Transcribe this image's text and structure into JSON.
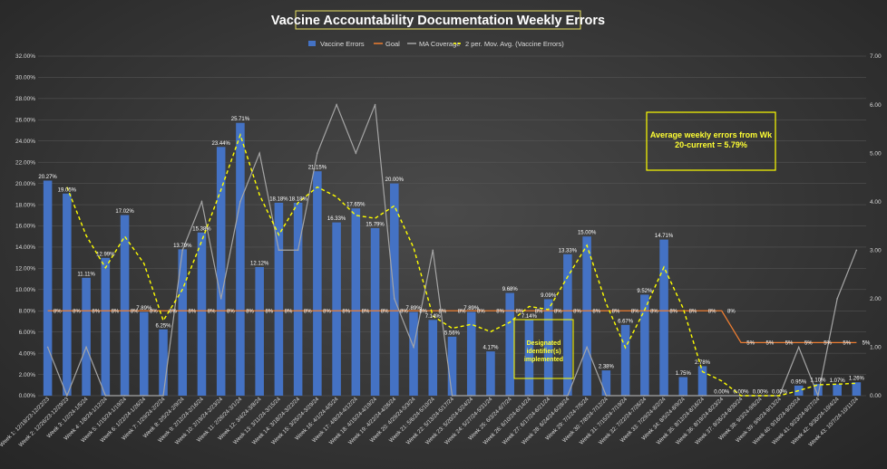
{
  "chart_data": {
    "type": "bar",
    "title": "Vaccine Accountability Documentation Weekly Errors",
    "legend": {
      "placement": "top-center",
      "entries": [
        "Vaccine Errors",
        "Goal",
        "MA Coverage",
        "2 per. Mov. Avg. (Vaccine Errors)"
      ]
    },
    "categories": [
      "Week 1: 12/18/23-12/22/23",
      "Week 2: 12/26/23-12/29/23",
      "Week 3: 1/2/24-1/5/24",
      "Week 4: 1/8/24-1/12/24",
      "Week 5: 1/15/24-1/19/24",
      "Week 6: 1/22/24-1/26/24",
      "Week 7: 1/29/24-2/2/24",
      "Week 8: 2/5/24-2/9/24",
      "Week 9: 2/12/24-2/16/24",
      "Week 10: 2/19/24-2/23/24",
      "Week 11: 2/26/24-3/1/24",
      "Week 12: 3/4/24-3/8/24",
      "Week 13: 3/11/24-3/15/24",
      "Week 14: 3/18/24-3/22/24",
      "Week 15: 3/25/24-3/29/24",
      "Week 16: 4/1/24-4/5/24",
      "Week 17: 4/8/24-4/12/24",
      "Week 18: 4/15/24-4/19/24",
      "Week 19: 4/22/24-4/26/24",
      "Week 20: 4/29/24-5/3/24",
      "Week 21: 5/6/24-5/10/24",
      "Week 22: 5/13/24-5/17/24",
      "Week 23: 5/20/24-5/24/24",
      "Week 24: 5/27/24-5/31/24",
      "Week 25: 6/3/24-6/7/24",
      "Week 26: 6/10/24-6/14/24",
      "Week 27: 6/17/24-6/21/24",
      "Week 28: 6/24/24-6/28/24",
      "Week 29: 7/1/24-7/5/24",
      "Week 30: 7/8/24-7/12/24",
      "Week 31: 7/15/24-7/19/24",
      "Week 32: 7/22/24-7/26/24",
      "Week 33: 7/29/24-8/2/24",
      "Week 34: 8/5/24-8/9/24",
      "Week 35: 8/12/24-8/16/24",
      "Week 36: 8/19/24-8/23/24",
      "Week 37: 8/26/24-8/30/24",
      "Week 38: 9/3/24-9/6/24",
      "Week 39: 9/9/24-9/13/24",
      "Week 40: 9/16/24-9/20/24",
      "Week 41: 9/23/24-9/27/24",
      "Week 42: 9/30/24-10/4/24",
      "Week 43: 10/7/24-10/11/24"
    ],
    "series": [
      {
        "name": "Vaccine Errors",
        "type": "bar",
        "axis": "left",
        "color": "#4472c4",
        "values": [
          20.27,
          19.05,
          11.11,
          12.99,
          17.02,
          7.89,
          6.25,
          13.79,
          15.38,
          23.44,
          25.71,
          12.12,
          18.18,
          18.18,
          21.15,
          16.33,
          17.65,
          15.79,
          20.0,
          7.89,
          7.14,
          5.56,
          7.89,
          4.17,
          9.68,
          7.14,
          9.09,
          13.33,
          15.0,
          2.38,
          6.67,
          9.52,
          14.71,
          1.75,
          2.78,
          0.0,
          0.0,
          0.0,
          0.0,
          0.95,
          1.1,
          1.07,
          1.26
        ],
        "labels": [
          "20.27%",
          "19.05%",
          "11.11%",
          "12.99%",
          "17.02%",
          "7.89%",
          "6.25%",
          "13.79%",
          "15.38%",
          "23.44%",
          "25.71%",
          "12.12%",
          "18.18%",
          "18.18%",
          "21.15%",
          "16.33%",
          "17.65%",
          "15.79%",
          "20.00%",
          "7.89%",
          "7.14%",
          "5.56%",
          "7.89%",
          "4.17%",
          "9.68%",
          "7.14%",
          "9.09%",
          "13.33%",
          "15.00%",
          "2.38%",
          "6.67%",
          "9.52%",
          "14.71%",
          "1.75%",
          "2.78%",
          "0.00%",
          "0.00%",
          "0.00%",
          "0.00%",
          "0.95%",
          "1.10%",
          "1.07%",
          "1.26%"
        ]
      },
      {
        "name": "Goal",
        "type": "line",
        "axis": "left",
        "color": "#ed7d31",
        "values": [
          8,
          8,
          8,
          8,
          8,
          8,
          8,
          8,
          8,
          8,
          8,
          8,
          8,
          8,
          8,
          8,
          8,
          8,
          8,
          8,
          8,
          8,
          8,
          8,
          8,
          8,
          8,
          8,
          8,
          8,
          8,
          8,
          8,
          8,
          8,
          8,
          5,
          5,
          5,
          5,
          5,
          5,
          5
        ],
        "labels": [
          "8%",
          "8%",
          "8%",
          "8%",
          "8%",
          "8%",
          "8%",
          "8%",
          "8%",
          "8%",
          "8%",
          "8%",
          "8%",
          "8%",
          "8%",
          "8%",
          "8%",
          "8%",
          "8%",
          "8%",
          "8%",
          "8%",
          "8%",
          "8%",
          "8%",
          "8%",
          "8%",
          "8%",
          "8%",
          "8%",
          "8%",
          "8%",
          "8%",
          "8%",
          "8%",
          "8%",
          "5%",
          "5%",
          "5%",
          "5%",
          "5%",
          "5%",
          "5%"
        ]
      },
      {
        "name": "MA Coverage",
        "type": "line",
        "axis": "right",
        "color": "#a5a5a5",
        "values": [
          1,
          0,
          1,
          0,
          0,
          0,
          0,
          3,
          4,
          2,
          4,
          5,
          3,
          3,
          5,
          6,
          5,
          6,
          2,
          1,
          3,
          0,
          0,
          0,
          0,
          0,
          0,
          0,
          1,
          0,
          0,
          0,
          0,
          0,
          0,
          0,
          0,
          0,
          0,
          1,
          0,
          2,
          3
        ]
      },
      {
        "name": "2 per. Mov. Avg. (Vaccine Errors)",
        "type": "line",
        "axis": "left",
        "color": "#ffff00",
        "dashed": true,
        "start_index": 1
      }
    ],
    "y_left": {
      "min": 0,
      "max": 32,
      "ticks": [
        "0.00%",
        "2.00%",
        "4.00%",
        "6.00%",
        "8.00%",
        "10.00%",
        "12.00%",
        "14.00%",
        "16.00%",
        "18.00%",
        "20.00%",
        "22.00%",
        "24.00%",
        "26.00%",
        "28.00%",
        "30.00%",
        "32.00%"
      ]
    },
    "y_right": {
      "min": 0,
      "max": 7,
      "ticks": [
        "0.00",
        "1.00",
        "2.00",
        "3.00",
        "4.00",
        "5.00",
        "6.00",
        "7.00"
      ]
    },
    "grid": true,
    "annotations": [
      {
        "text_lines": [
          "Average weekly errors from Wk",
          "20-current = 5.79%"
        ],
        "color": "#ffff00",
        "position": "upper-right"
      },
      {
        "text_lines": [
          "Designated",
          "identifier(s)",
          "implemented"
        ],
        "color": "#ffff00",
        "position": "lower-middle"
      }
    ]
  }
}
